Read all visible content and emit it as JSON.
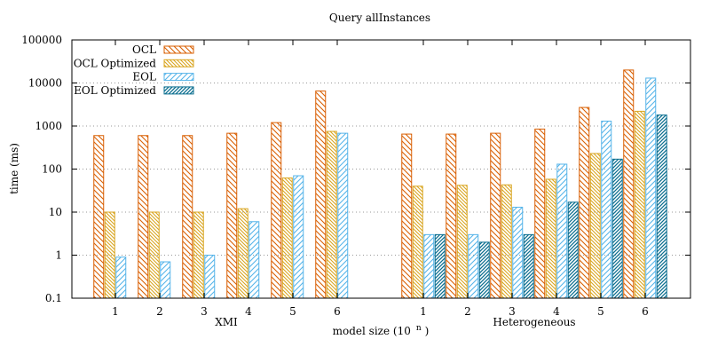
{
  "chart_data": {
    "type": "bar",
    "title": "Query allInstances",
    "xlabel": "model size (10",
    "xlabel_sup": "n",
    "xlabel_close": ")",
    "ylabel": "time (ms)",
    "yscale": "log",
    "ylim": [
      0.1,
      100000
    ],
    "y_ticks": [
      "0.1",
      "1",
      "10",
      "100",
      "1000",
      "10000",
      "100000"
    ],
    "grid": "horizontal dotted",
    "legend_position": "top-left",
    "groups": [
      {
        "label": "XMI",
        "categories": [
          "1",
          "2",
          "3",
          "4",
          "5",
          "6"
        ]
      },
      {
        "label": "Heterogeneous",
        "categories": [
          "1",
          "2",
          "3",
          "4",
          "5",
          "6"
        ]
      }
    ],
    "series": [
      {
        "name": "OCL",
        "color": "#d95f02",
        "pattern": "hatch-back",
        "values": [
          [
            600,
            600,
            600,
            680,
            1200,
            6500
          ],
          [
            650,
            650,
            680,
            850,
            2700,
            20000
          ]
        ]
      },
      {
        "name": "OCL Optimized",
        "color": "#d9a520",
        "pattern": "hatch-dense",
        "values": [
          [
            10,
            10,
            10,
            12,
            62,
            750
          ],
          [
            40,
            42,
            43,
            58,
            230,
            2200
          ]
        ]
      },
      {
        "name": "EOL",
        "color": "#56b4e9",
        "pattern": "hatch-forward",
        "values": [
          [
            0.9,
            0.7,
            1.0,
            6.0,
            70,
            680
          ],
          [
            3.0,
            3.0,
            13,
            130,
            1300,
            13000
          ]
        ]
      },
      {
        "name": "EOL Optimized",
        "color": "#0b6e8f",
        "pattern": "hatch-forward-dense",
        "values": [
          [
            null,
            null,
            null,
            null,
            null,
            null
          ],
          [
            3.0,
            2.0,
            3.0,
            17,
            170,
            1800
          ]
        ]
      }
    ]
  }
}
